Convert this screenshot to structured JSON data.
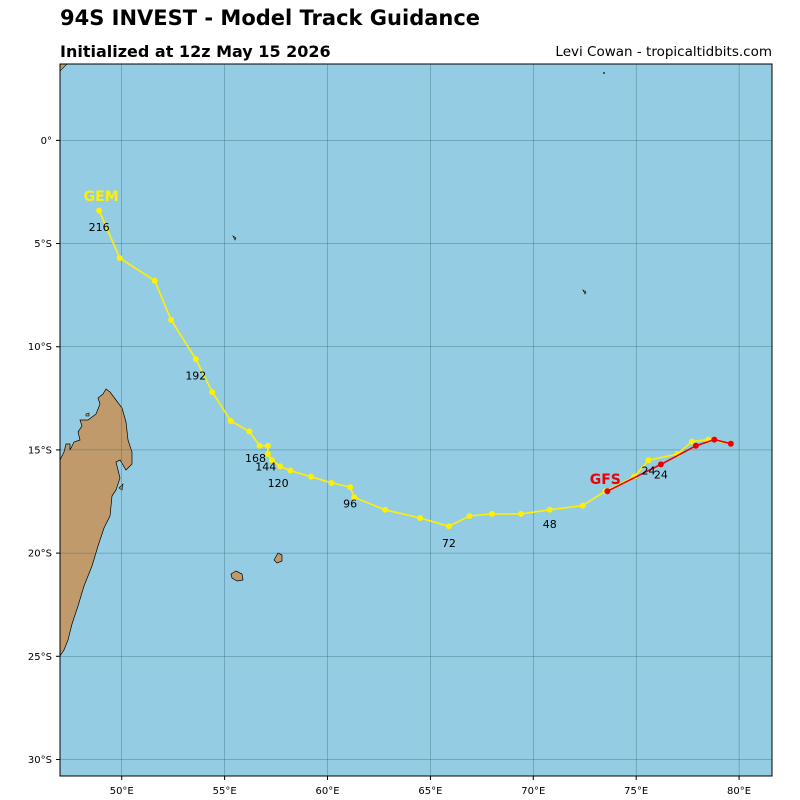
{
  "header": {
    "title": "94S INVEST - Model Track Guidance",
    "subtitle": "Initialized at 12z May 15 2026",
    "credit": "Levi Cowan - tropicaltidbits.com"
  },
  "colors": {
    "ocean": "#94cde3",
    "land": "#c19a6b",
    "gem": "#ffef00",
    "gfs": "#ee0000",
    "grid": "#3a6f80"
  },
  "chart_data": {
    "type": "map",
    "xlim": [
      47,
      81.6
    ],
    "ylim": [
      -30.8,
      3.7
    ],
    "x_ticks": [
      50,
      55,
      60,
      65,
      70,
      75,
      80
    ],
    "y_ticks": [
      0,
      -5,
      -10,
      -15,
      -20,
      -25,
      -30
    ],
    "x_tick_labels": [
      "50°E",
      "55°E",
      "60°E",
      "65°E",
      "70°E",
      "75°E",
      "80°E"
    ],
    "y_tick_labels": [
      "0°",
      "5°S",
      "10°S",
      "15°S",
      "20°S",
      "25°S",
      "30°S"
    ],
    "grid": true,
    "tracks": [
      {
        "name": "GEM",
        "color": "#ffef00",
        "points": [
          [
            79.6,
            -14.7
          ],
          [
            78.5,
            -14.5
          ],
          [
            77.7,
            -14.6
          ],
          [
            77.0,
            -15.2
          ],
          [
            75.6,
            -15.5
          ],
          [
            74.9,
            -16.3
          ],
          [
            73.5,
            -17.0
          ],
          [
            72.4,
            -17.7
          ],
          [
            70.8,
            -17.9
          ],
          [
            69.4,
            -18.1
          ],
          [
            68.0,
            -18.1
          ],
          [
            66.9,
            -18.2
          ],
          [
            65.9,
            -18.7
          ],
          [
            64.5,
            -18.3
          ],
          [
            62.8,
            -17.9
          ],
          [
            61.3,
            -17.3
          ],
          [
            61.1,
            -16.8
          ],
          [
            60.2,
            -16.6
          ],
          [
            59.2,
            -16.3
          ],
          [
            58.2,
            -16.0
          ],
          [
            57.7,
            -15.8
          ],
          [
            57.3,
            -15.5
          ],
          [
            57.1,
            -15.2
          ],
          [
            57.1,
            -14.8
          ],
          [
            56.7,
            -14.8
          ],
          [
            56.2,
            -14.1
          ],
          [
            55.3,
            -13.6
          ],
          [
            54.4,
            -12.2
          ],
          [
            53.6,
            -10.6
          ],
          [
            52.4,
            -8.7
          ],
          [
            51.6,
            -6.8
          ],
          [
            49.9,
            -5.7
          ],
          [
            48.9,
            -3.4
          ]
        ],
        "label": "GEM",
        "label_lonlat": [
          49.0,
          -2.7
        ],
        "hour_labels": [
          {
            "text": "24",
            "lon": 75.6,
            "lat": -16.0
          },
          {
            "text": "48",
            "lon": 70.8,
            "lat": -18.6
          },
          {
            "text": "72",
            "lon": 65.9,
            "lat": -19.5
          },
          {
            "text": "96",
            "lon": 61.1,
            "lat": -17.6
          },
          {
            "text": "120",
            "lon": 57.6,
            "lat": -16.6
          },
          {
            "text": "144",
            "lon": 57.0,
            "lat": -15.8
          },
          {
            "text": "168",
            "lon": 56.5,
            "lat": -15.4
          },
          {
            "text": "192",
            "lon": 53.6,
            "lat": -11.4
          },
          {
            "text": "216",
            "lon": 48.9,
            "lat": -4.2
          }
        ]
      },
      {
        "name": "GFS",
        "color": "#ee0000",
        "points": [
          [
            79.6,
            -14.7
          ],
          [
            78.8,
            -14.5
          ],
          [
            77.9,
            -14.8
          ],
          [
            76.2,
            -15.7
          ],
          [
            73.6,
            -17.0
          ]
        ],
        "label": "GFS",
        "label_lonlat": [
          73.5,
          -16.4
        ],
        "hour_labels": [
          {
            "text": "24",
            "lon": 76.2,
            "lat": -16.2
          }
        ]
      }
    ]
  }
}
